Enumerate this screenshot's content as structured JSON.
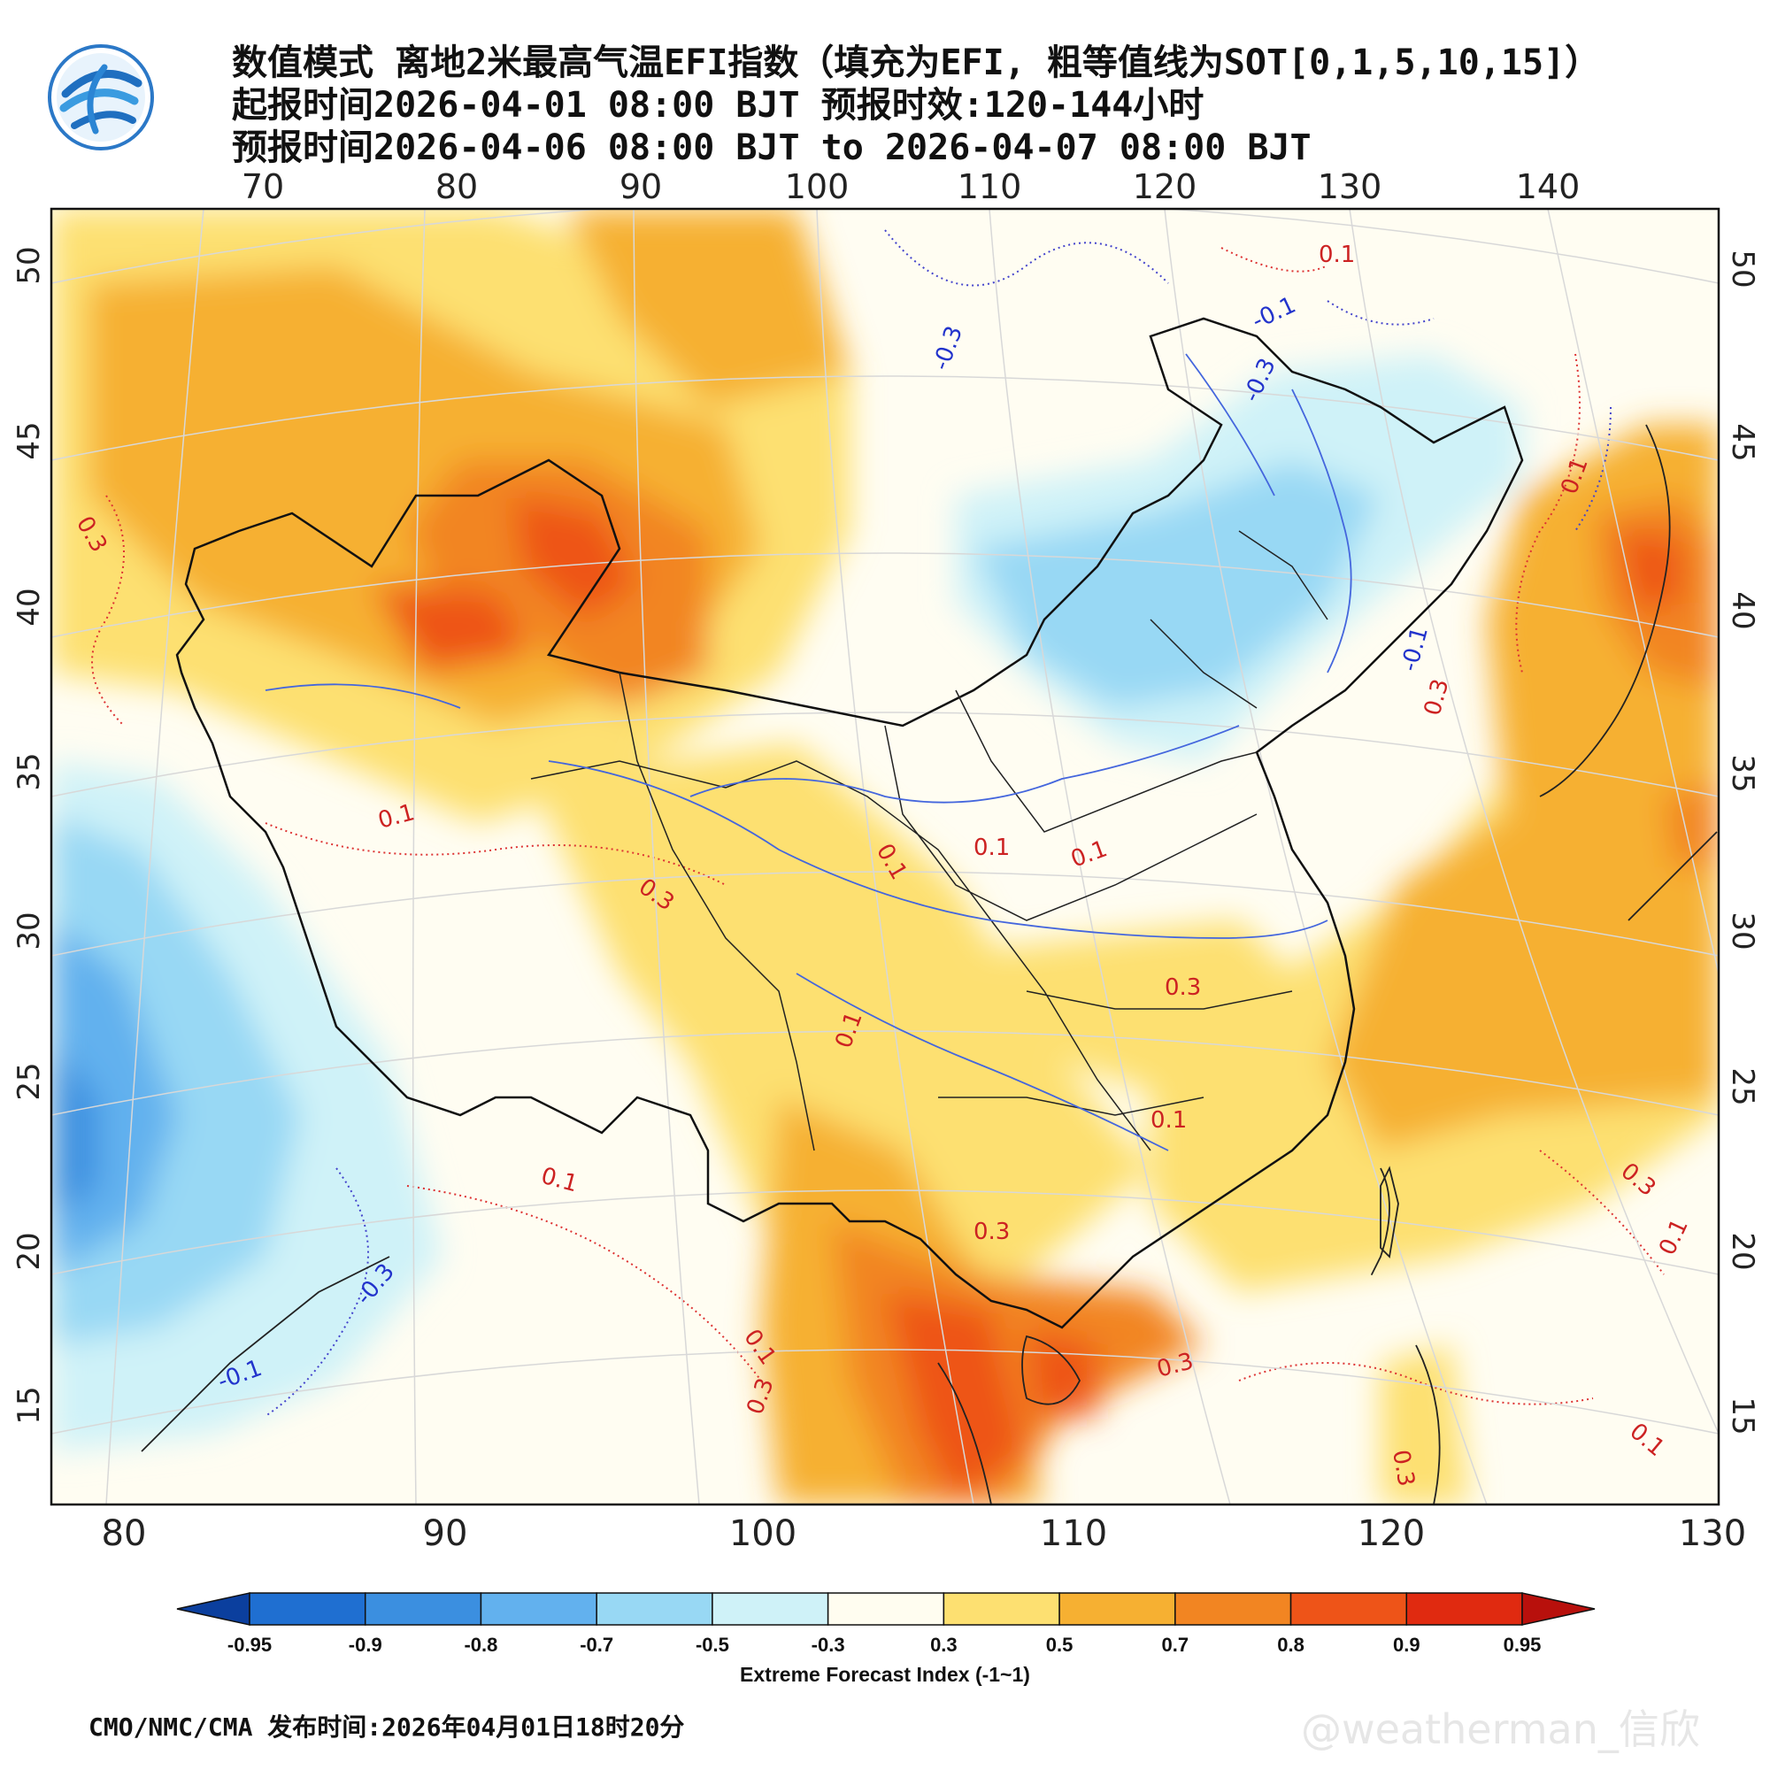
{
  "header": {
    "line1": "数值模式 离地2米最高气温EFI指数（填充为EFI, 粗等值线为SOT[0,1,5,10,15]）",
    "line2": "起报时间2026-04-01 08:00 BJT 预报时效:120-144小时",
    "line3": "预报时间2026-04-06 08:00 BJT to 2026-04-07 08:00 BJT"
  },
  "map": {
    "top_lon_labels": [
      "70",
      "80",
      "90",
      "100",
      "110",
      "120",
      "130",
      "140"
    ],
    "bottom_lon_labels": [
      "80",
      "90",
      "100",
      "110",
      "120",
      "130"
    ],
    "lat_labels": [
      "50",
      "45",
      "40",
      "35",
      "30",
      "25",
      "20",
      "15"
    ],
    "contour_labels": [
      {
        "text": "0.1",
        "color": "#cc2222"
      },
      {
        "text": "-0.1",
        "color": "#2233cc"
      },
      {
        "text": "-0.3",
        "color": "#2233cc"
      },
      {
        "text": "-0.3",
        "color": "#2233cc"
      },
      {
        "text": "0.3",
        "color": "#cc2222"
      },
      {
        "text": "0.1",
        "color": "#cc2222"
      },
      {
        "text": "0.3",
        "color": "#cc2222"
      },
      {
        "text": "0.1",
        "color": "#cc2222"
      },
      {
        "text": "0.1",
        "color": "#cc2222"
      },
      {
        "text": "0.1",
        "color": "#cc2222"
      },
      {
        "text": "0.3",
        "color": "#cc2222"
      },
      {
        "text": "0.1",
        "color": "#cc2222"
      },
      {
        "text": "0.1",
        "color": "#cc2222"
      },
      {
        "text": "0.3",
        "color": "#cc2222"
      },
      {
        "text": "0.1",
        "color": "#cc2222"
      },
      {
        "text": "0.3",
        "color": "#cc2222"
      },
      {
        "text": "-0.3",
        "color": "#2233cc"
      },
      {
        "text": "0.1",
        "color": "#cc2222"
      },
      {
        "text": "0.3",
        "color": "#cc2222"
      },
      {
        "text": "0.3",
        "color": "#cc2222"
      },
      {
        "text": "0.3",
        "color": "#cc2222"
      },
      {
        "text": "0.1",
        "color": "#cc2222"
      },
      {
        "text": "-0.1",
        "color": "#2233cc"
      },
      {
        "text": "0.3",
        "color": "#cc2222"
      },
      {
        "text": "0.1",
        "color": "#cc2222"
      },
      {
        "text": "0.1",
        "color": "#cc2222"
      },
      {
        "text": "-0.1",
        "color": "#2233cc"
      }
    ]
  },
  "colorbar": {
    "ticks": [
      "-0.95",
      "-0.9",
      "-0.8",
      "-0.7",
      "-0.5",
      "-0.3",
      "0.3",
      "0.5",
      "0.7",
      "0.8",
      "0.9",
      "0.95"
    ],
    "colors": [
      "#0b3f9e",
      "#1f6fd1",
      "#3b8fe0",
      "#62b1ee",
      "#98d8f4",
      "#cff2f8",
      "#fffdf0",
      "#fde071",
      "#f6b032",
      "#f28522",
      "#ee5418",
      "#e02a10",
      "#b8100c"
    ],
    "title": "Extreme Forecast Index (-1~1)"
  },
  "footer": {
    "publisher": "CMO/NMC/CMA 发布时间:2026年04月01日18时20分",
    "watermark": "@weatherman_信欣"
  }
}
